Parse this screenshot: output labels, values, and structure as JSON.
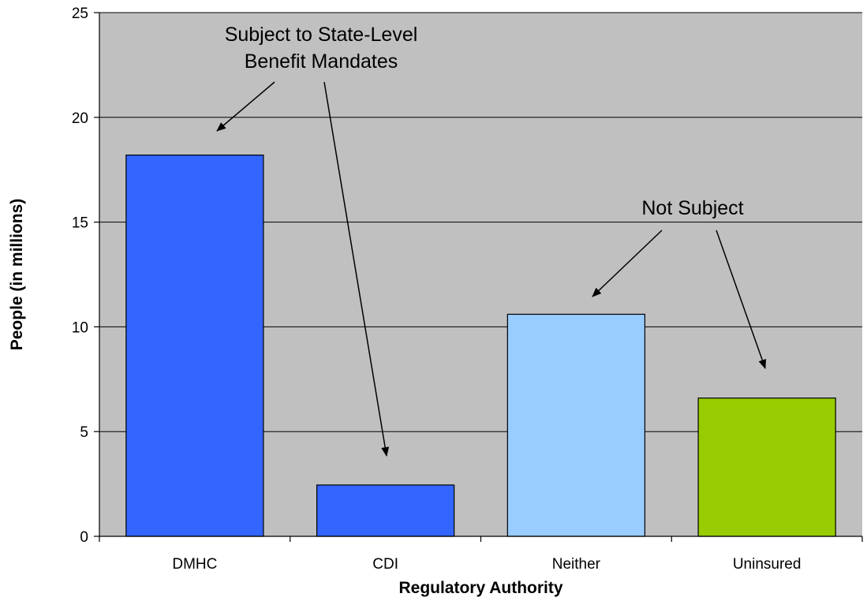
{
  "chart_data": {
    "type": "bar",
    "categories": [
      "DMHC",
      "CDI",
      "Neither",
      "Uninsured"
    ],
    "values": [
      18.2,
      2.45,
      10.6,
      6.6
    ],
    "colors": [
      "#3366ff",
      "#3366ff",
      "#99ccff",
      "#99cc00"
    ],
    "xlabel": "Regulatory Authority",
    "ylabel": "People (in millions)",
    "ylim": [
      0,
      25
    ],
    "yticks": [
      0,
      5,
      10,
      15,
      20,
      25
    ],
    "grid": true,
    "plot_background": "#c0c0c0",
    "annotations": [
      {
        "lines": [
          "Subject to State-Level",
          "Benefit Mandates"
        ],
        "targets": [
          "DMHC",
          "CDI"
        ]
      },
      {
        "lines": [
          "Not Subject"
        ],
        "targets": [
          "Neither",
          "Uninsured"
        ]
      }
    ]
  }
}
